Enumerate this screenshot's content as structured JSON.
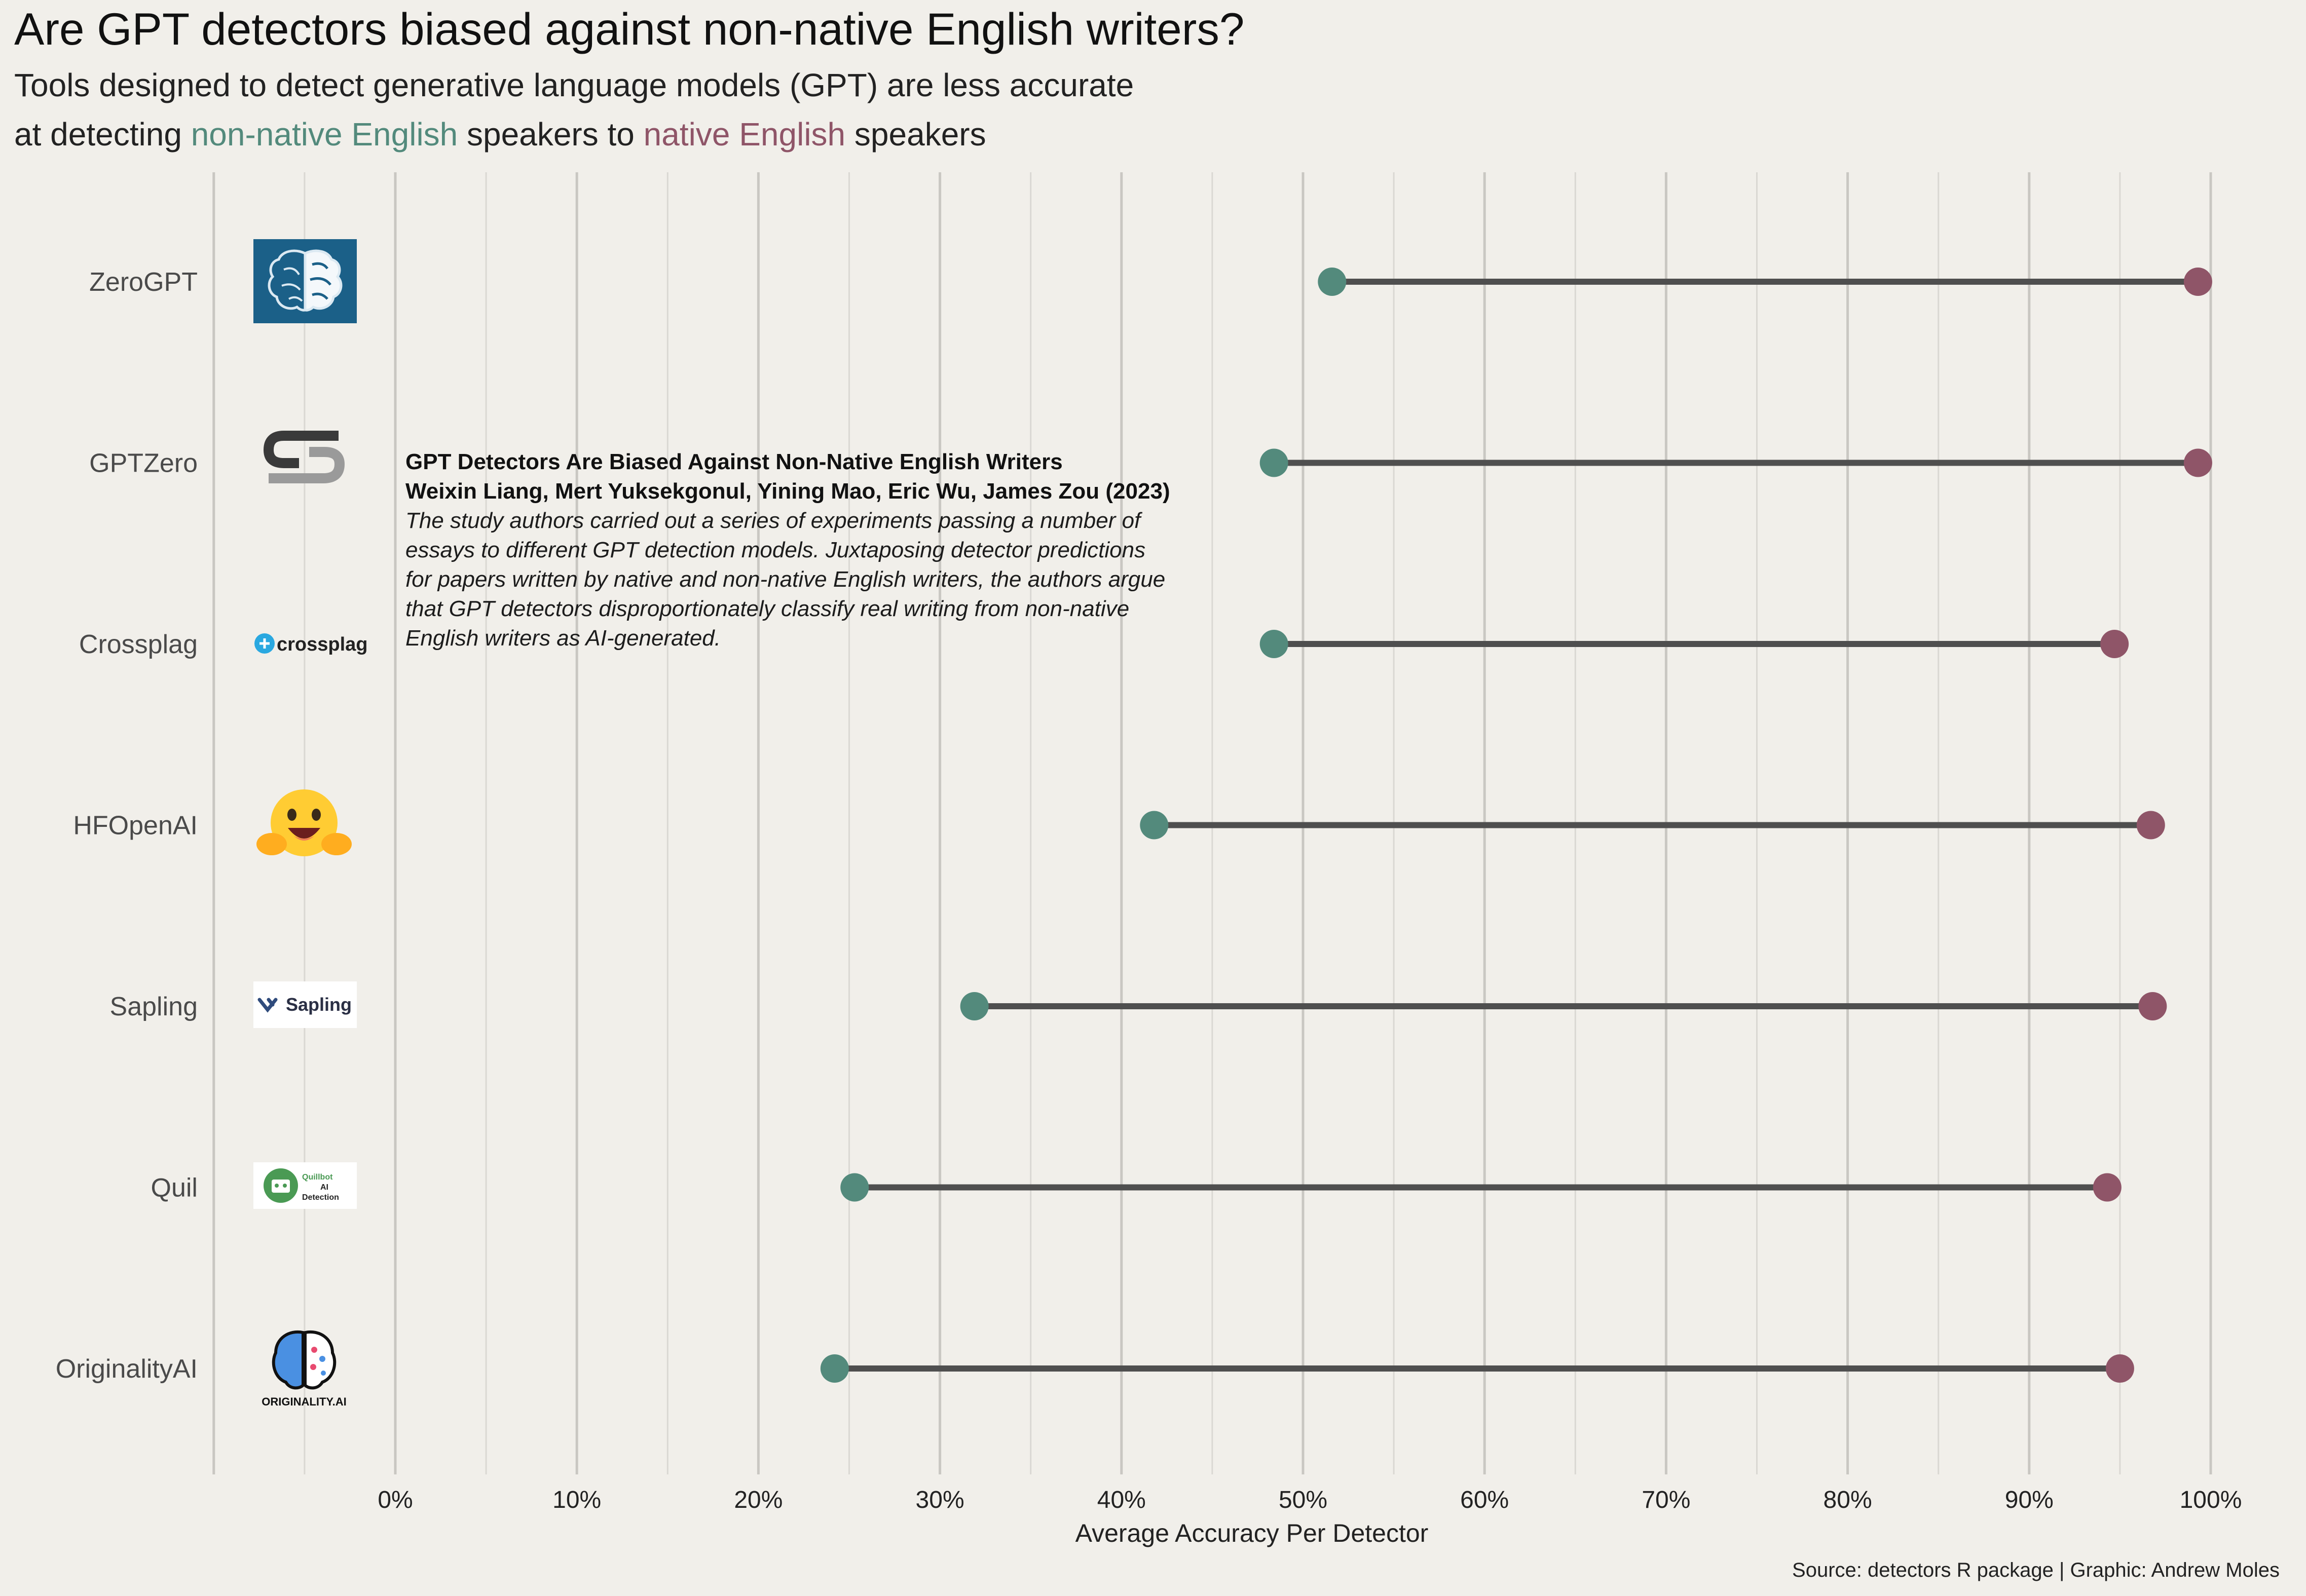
{
  "title": "Are GPT detectors biased against non-native English writers?",
  "subtitle": {
    "line1": "Tools designed to detect generative language models (GPT) are less accurate",
    "line2_pre": "at detecting ",
    "line2_nonnative": "non-native English",
    "line2_mid": " speakers to ",
    "line2_native": "native English",
    "line2_post": " speakers"
  },
  "colors": {
    "non_native": "#538a7c",
    "native": "#8f5568",
    "segment": "#4f4f4f",
    "background": "#f1efea"
  },
  "logos": [
    {
      "detector": "ZeroGPT",
      "icon": "zerogpt-brain-logo"
    },
    {
      "detector": "GPTZero",
      "icon": "gptzero-logo"
    },
    {
      "detector": "Crossplag",
      "icon": "crossplag-logo",
      "text": "crossplag"
    },
    {
      "detector": "HFOpenAI",
      "icon": "hugging-face-emoji-logo"
    },
    {
      "detector": "Sapling",
      "icon": "sapling-logo",
      "text": "Sapling"
    },
    {
      "detector": "Quil",
      "icon": "quillbot-logo",
      "text1": "Quillbot",
      "text2": "AI",
      "text3": "Detection"
    },
    {
      "detector": "OriginalityAI",
      "icon": "originality-ai-logo",
      "text": "ORIGINALITY.AI"
    }
  ],
  "annotation": {
    "heading": "GPT Detectors Are Biased Against Non-Native English Writers",
    "authors": "Weixin Liang, Mert Yuksekgonul, Yining Mao, Eric Wu, James Zou (2023)",
    "body": [
      "The study authors carried out a series of experiments passing a number of",
      "essays to different GPT detection models. Juxtaposing detector predictions",
      "for papers written by native and non-native English writers, the authors argue",
      "that GPT detectors disproportionately classify real writing from non-native",
      "English writers as AI-generated."
    ]
  },
  "caption": "Source: detectors R package | Graphic: Andrew Moles",
  "chart_data": {
    "type": "dumbbell",
    "xlabel": "Average Accuracy Per Detector",
    "xlim": [
      -0.1,
      1.0
    ],
    "x_ticks": [
      0,
      0.1,
      0.2,
      0.3,
      0.4,
      0.5,
      0.6,
      0.7,
      0.8,
      0.9,
      1.0
    ],
    "x_tick_labels": [
      "0%",
      "10%",
      "20%",
      "30%",
      "40%",
      "50%",
      "60%",
      "70%",
      "80%",
      "90%",
      "100%"
    ],
    "categories": [
      "ZeroGPT",
      "GPTZero",
      "Crossplag",
      "HFOpenAI",
      "Sapling",
      "Quil",
      "OriginalityAI"
    ],
    "series": [
      {
        "name": "non-native English",
        "values": [
          0.516,
          0.484,
          0.484,
          0.418,
          0.319,
          0.253,
          0.242
        ]
      },
      {
        "name": "native English",
        "values": [
          0.993,
          0.993,
          0.947,
          0.967,
          0.968,
          0.943,
          0.95
        ]
      }
    ],
    "grid": true,
    "legend": "subtitle"
  }
}
